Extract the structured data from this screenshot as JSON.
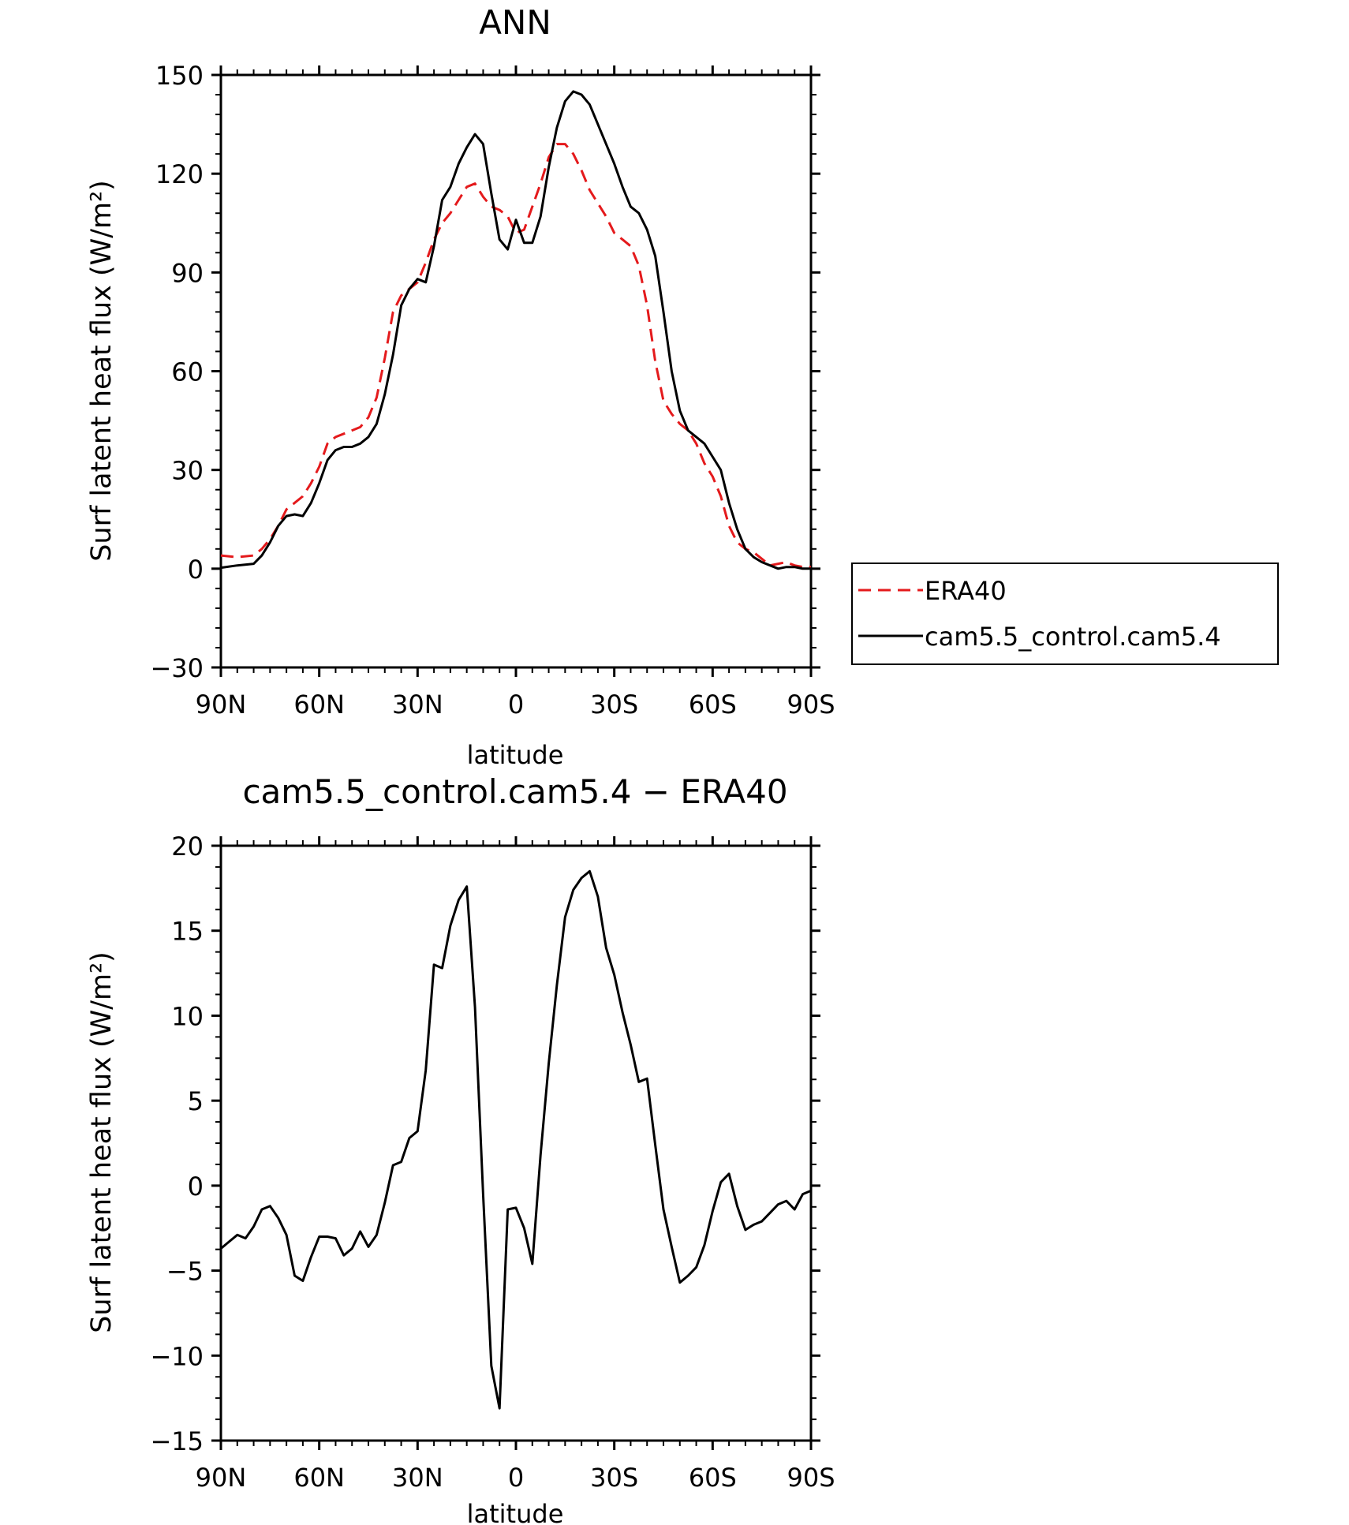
{
  "chart_data": [
    {
      "type": "line",
      "title": "ANN",
      "xlabel": "latitude",
      "ylabel": "Surf latent heat flux (W/m²)",
      "ylim": [
        -30,
        150
      ],
      "xlim": [
        -90,
        90
      ],
      "yticks": [
        -30,
        0,
        30,
        60,
        90,
        120,
        150
      ],
      "yticklabels": [
        "−30",
        "0",
        "30",
        "60",
        "90",
        "120",
        "150"
      ],
      "xticks": [
        -90,
        -60,
        -30,
        0,
        30,
        60,
        90
      ],
      "xticklabels": [
        "90N",
        "60N",
        "30N",
        "0",
        "30S",
        "60S",
        "90S"
      ],
      "x_direction": "north-to-south",
      "legend": {
        "placement": "right"
      },
      "series": [
        {
          "name": "ERA40",
          "color": "#e41a1c",
          "dash": "dashed",
          "x": [
            -90,
            -85,
            -80,
            -77.5,
            -75,
            -72.5,
            -70,
            -67.5,
            -65,
            -62.5,
            -60,
            -57.5,
            -55,
            -52.5,
            -50,
            -47.5,
            -45,
            -42.5,
            -40,
            -37.5,
            -35,
            -32.5,
            -30,
            -27.5,
            -25,
            -22.5,
            -20,
            -17.5,
            -15,
            -12.5,
            -10,
            -7.5,
            -5,
            -2.5,
            0,
            2.5,
            5,
            7.5,
            10,
            12.5,
            15,
            17.5,
            20,
            22.5,
            25,
            27.5,
            30,
            32.5,
            35,
            37.5,
            40,
            42.5,
            45,
            47.5,
            50,
            52.5,
            55,
            57.5,
            60,
            62.5,
            65,
            67.5,
            70,
            72.5,
            75,
            77.5,
            80,
            82.5,
            85,
            87.5,
            90
          ],
          "y": [
            4,
            3.5,
            4,
            6,
            9,
            13,
            18,
            20,
            22,
            26,
            31,
            38,
            40,
            41,
            42,
            43,
            46,
            52,
            64,
            78,
            83,
            85,
            87,
            93,
            100,
            105,
            108,
            112,
            116,
            117,
            113,
            110,
            109,
            107,
            102,
            103,
            110,
            117,
            125,
            129,
            129,
            126,
            121,
            115,
            111,
            107,
            102,
            100,
            98,
            92,
            80,
            63,
            51,
            47,
            44,
            42,
            38,
            32,
            28,
            22,
            13,
            8,
            6,
            5,
            3,
            1,
            1.5,
            2,
            1,
            0.5,
            0.5
          ]
        },
        {
          "name": "cam5.5_control.cam5.4",
          "color": "#000000",
          "dash": "solid",
          "x": [
            -90,
            -85,
            -80,
            -77.5,
            -75,
            -72.5,
            -70,
            -67.5,
            -65,
            -62.5,
            -60,
            -57.5,
            -55,
            -52.5,
            -50,
            -47.5,
            -45,
            -42.5,
            -40,
            -37.5,
            -35,
            -32.5,
            -30,
            -27.5,
            -25,
            -22.5,
            -20,
            -17.5,
            -15,
            -12.5,
            -10,
            -7.5,
            -5,
            -2.5,
            0,
            2.5,
            5,
            7.5,
            10,
            12.5,
            15,
            17.5,
            20,
            22.5,
            25,
            27.5,
            30,
            32.5,
            35,
            37.5,
            40,
            42.5,
            45,
            47.5,
            50,
            52.5,
            55,
            57.5,
            60,
            62.5,
            65,
            67.5,
            70,
            72.5,
            75,
            77.5,
            80,
            82.5,
            85,
            87.5,
            90
          ],
          "y": [
            0.3,
            1,
            1.5,
            4,
            8,
            13,
            16,
            16.5,
            16,
            20,
            26,
            33,
            36,
            37,
            37,
            38,
            40,
            44,
            53,
            65,
            80,
            85,
            88,
            87,
            98,
            112,
            116,
            123,
            128,
            132,
            129,
            114,
            100,
            97,
            106,
            99,
            99,
            107,
            122,
            134,
            142,
            145,
            144,
            141,
            135,
            129,
            123,
            116,
            110,
            108,
            103,
            95,
            78,
            60,
            48,
            42,
            40,
            38,
            34,
            30,
            20,
            12,
            6,
            3.5,
            2,
            1,
            0,
            0.5,
            0.5,
            0,
            0
          ]
        }
      ]
    },
    {
      "type": "line",
      "title": "cam5.5_control.cam5.4 − ERA40",
      "xlabel": "latitude",
      "ylabel": "Surf latent heat flux (W/m²)",
      "ylim": [
        -15,
        20
      ],
      "xlim": [
        -90,
        90
      ],
      "yticks": [
        -15,
        -10,
        -5,
        0,
        5,
        10,
        15,
        20
      ],
      "yticklabels": [
        "−15",
        "−10",
        "−5",
        "0",
        "5",
        "10",
        "15",
        "20"
      ],
      "xticks": [
        -90,
        -60,
        -30,
        0,
        30,
        60,
        90
      ],
      "xticklabels": [
        "90N",
        "60N",
        "30N",
        "0",
        "30S",
        "60S",
        "90S"
      ],
      "x_direction": "north-to-south",
      "series": [
        {
          "color": "#000000",
          "dash": "solid",
          "x": [
            -90,
            -87.5,
            -85,
            -82.5,
            -80,
            -77.5,
            -75,
            -72.5,
            -70,
            -67.5,
            -65,
            -62.5,
            -60,
            -57.5,
            -55,
            -52.5,
            -50,
            -47.5,
            -45,
            -42.5,
            -40,
            -37.5,
            -35,
            -32.5,
            -30,
            -27.5,
            -25,
            -22.5,
            -20,
            -17.5,
            -15,
            -12.5,
            -10,
            -7.5,
            -5,
            -2.5,
            0,
            2.5,
            5,
            7.5,
            10,
            12.5,
            15,
            17.5,
            20,
            22.5,
            25,
            27.5,
            30,
            32.5,
            35,
            37.5,
            40,
            42.5,
            45,
            47.5,
            50,
            52.5,
            55,
            57.5,
            60,
            62.5,
            65,
            67.5,
            70,
            72.5,
            75,
            77.5,
            80,
            82.5,
            85,
            87.5,
            90
          ],
          "y": [
            -3.7,
            -3.3,
            -2.9,
            -3.1,
            -2.4,
            -1.4,
            -1.2,
            -1.9,
            -2.9,
            -5.3,
            -5.6,
            -4.2,
            -3.0,
            -3.0,
            -3.1,
            -4.1,
            -3.7,
            -2.7,
            -3.6,
            -2.9,
            -1.0,
            1.2,
            1.4,
            2.8,
            3.2,
            6.8,
            13.0,
            12.8,
            15.3,
            16.8,
            17.6,
            10.5,
            -0.5,
            -10.6,
            -13.1,
            -1.4,
            -1.3,
            -2.5,
            -4.6,
            1.8,
            7.2,
            11.8,
            15.8,
            17.4,
            18.1,
            18.5,
            17.0,
            14.0,
            12.4,
            10.2,
            8.3,
            6.1,
            6.3,
            2.4,
            -1.4,
            -3.6,
            -5.7,
            -5.3,
            -4.8,
            -3.5,
            -1.5,
            0.2,
            0.7,
            -1.2,
            -2.6,
            -2.3,
            -2.1,
            -1.6,
            -1.1,
            -0.9,
            -1.4,
            -0.5,
            -0.3
          ]
        }
      ]
    }
  ]
}
